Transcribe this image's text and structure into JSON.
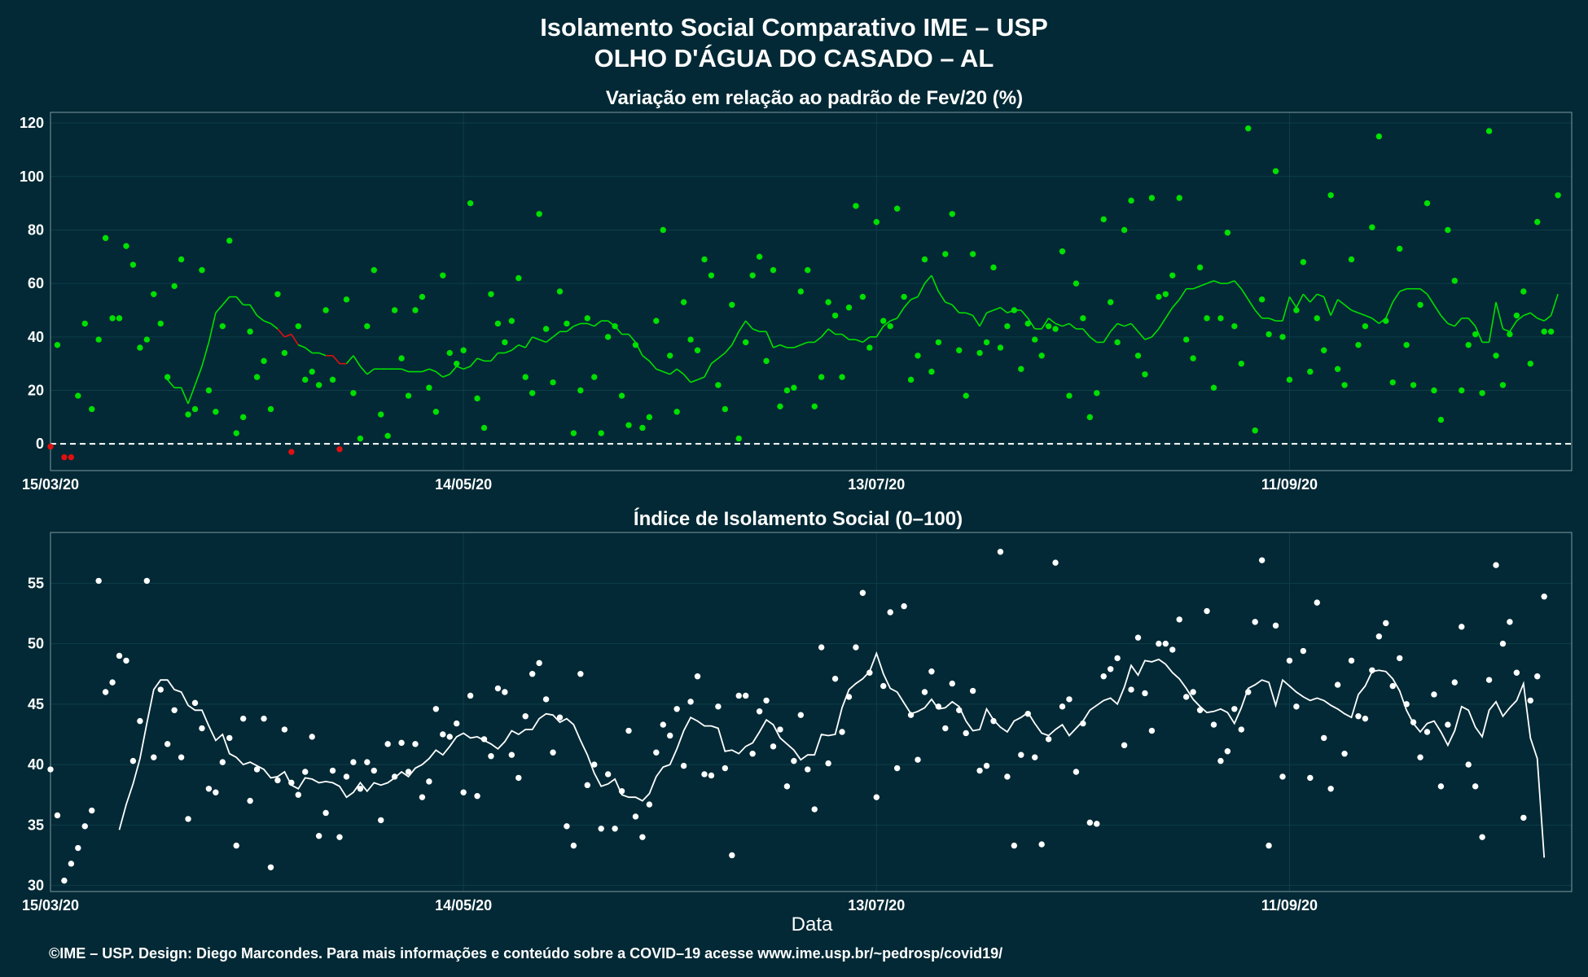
{
  "title_line1": "Isolamento Social Comparativo IME – USP",
  "title_line2": "OLHO D'ÁGUA DO CASADO – AL",
  "footer": "©IME – USP. Design: Diego Marcondes. Para mais informações e conteúdo sobre a COVID–19 acesse www.ime.usp.br/~pedrosp/covid19/",
  "xlabel": "Data",
  "colors": {
    "background": "#022935",
    "positive": "#00e000",
    "negative": "#e01010",
    "index": "#ffffff",
    "zero_line": "#ffffff",
    "grid": "#0f3d4a",
    "frame": "#7f9aa3"
  },
  "chart_data": [
    {
      "type": "scatter",
      "title": "Variação em relação ao padrão de Fev/20 (%)",
      "x_start": "15/03/20",
      "x_ticks": [
        "15/03/20",
        "14/05/20",
        "13/07/20",
        "11/09/20"
      ],
      "x_tick_days": [
        0,
        60,
        120,
        180
      ],
      "xlim_days": [
        0,
        221
      ],
      "yticks": [
        0,
        20,
        40,
        60,
        80,
        100,
        120
      ],
      "ylim": [
        -10,
        124
      ],
      "zero_line": true,
      "series": [
        {
          "kind": "daily-points",
          "values": [
            -1,
            37,
            -5,
            -5,
            18,
            45,
            13,
            39,
            77,
            47,
            47,
            74,
            67,
            36,
            39,
            56,
            45,
            25,
            59,
            69,
            11,
            13,
            65,
            20,
            12,
            44,
            76,
            4,
            10,
            42,
            25,
            31,
            13,
            56,
            34,
            -3,
            44,
            24,
            27,
            22,
            50,
            24,
            -2,
            54,
            19,
            2,
            44,
            65,
            11,
            3,
            50,
            32,
            18,
            50,
            55,
            21,
            12,
            63,
            34,
            30,
            35,
            90,
            17,
            6,
            56,
            45,
            38,
            46,
            62,
            25,
            19,
            86,
            43,
            23,
            57,
            45,
            4,
            20,
            47,
            25,
            4,
            40,
            44,
            18,
            7,
            37,
            6,
            10,
            46,
            80,
            33,
            12,
            53,
            39,
            35,
            69,
            63,
            22,
            13,
            52,
            2,
            38,
            63,
            70,
            31,
            65,
            14,
            20,
            21,
            57,
            65,
            14,
            25,
            53,
            48,
            25,
            51,
            89,
            55,
            36,
            83,
            46,
            44,
            88,
            55,
            24,
            33,
            69,
            27,
            38,
            71,
            86,
            35,
            18,
            71,
            34,
            38,
            66,
            36,
            44,
            50,
            28,
            45,
            39,
            33,
            44,
            43,
            72,
            18,
            60,
            47,
            10,
            19,
            84,
            53,
            38,
            80,
            91,
            33,
            26,
            92,
            55,
            56,
            63,
            92,
            39,
            32,
            66,
            47,
            21,
            47,
            79,
            44,
            30,
            118,
            5,
            54,
            41,
            102,
            40,
            24,
            50,
            68,
            27,
            47,
            35,
            93,
            28,
            22,
            69,
            37,
            44,
            81,
            115,
            46,
            23,
            73,
            37,
            22,
            52,
            90,
            20,
            9,
            80,
            61,
            20,
            37,
            41,
            19,
            117,
            33,
            22,
            41,
            48,
            57,
            30,
            83,
            42,
            42,
            93
          ]
        },
        {
          "kind": "moving-average",
          "values": [
            24,
            21,
            21,
            15,
            22,
            29,
            38,
            49,
            52,
            55,
            55,
            52,
            52,
            48,
            46,
            45,
            43,
            40,
            41,
            37,
            36,
            34,
            34,
            33,
            33,
            30,
            30,
            33,
            29,
            26,
            28,
            28,
            28,
            28,
            28,
            27,
            27,
            27,
            28,
            27,
            25,
            26,
            29,
            28,
            29,
            32,
            31,
            31,
            34,
            34,
            35,
            37,
            36,
            40,
            39,
            38,
            40,
            42,
            42,
            44,
            45,
            45,
            44,
            46,
            46,
            44,
            41,
            41,
            38,
            33,
            31,
            28,
            27,
            26,
            28,
            26,
            23,
            24,
            25,
            30,
            32,
            34,
            37,
            42,
            46,
            43,
            42,
            42,
            36,
            37,
            36,
            36,
            37,
            38,
            38,
            40,
            43,
            41,
            41,
            39,
            39,
            38,
            40,
            40,
            44,
            46,
            47,
            51,
            54,
            55,
            60,
            63,
            57,
            53,
            52,
            49,
            49,
            48,
            44,
            49,
            50,
            51,
            49,
            50,
            50,
            47,
            43,
            43,
            47,
            45,
            44,
            45,
            43,
            43,
            40,
            38,
            38,
            42,
            45,
            44,
            45,
            42,
            39,
            40,
            43,
            47,
            51,
            54,
            58,
            58,
            59,
            60,
            61,
            60,
            60,
            61,
            58,
            54,
            50,
            47,
            47,
            46,
            46,
            55,
            51,
            56,
            53,
            56,
            55,
            48,
            54,
            52,
            50,
            49,
            48,
            47,
            45,
            47,
            53,
            57,
            58,
            58,
            58,
            56,
            52,
            48,
            45,
            44,
            47,
            47,
            44,
            38,
            38,
            53,
            43,
            42,
            46,
            48,
            49,
            47,
            46,
            48,
            56
          ]
        }
      ]
    },
    {
      "type": "scatter",
      "title": "Índice de Isolamento Social (0–100)",
      "x_start": "15/03/20",
      "x_ticks": [
        "15/03/20",
        "14/05/20",
        "13/07/20",
        "11/09/20"
      ],
      "x_tick_days": [
        0,
        60,
        120,
        180
      ],
      "xlim_days": [
        0,
        221
      ],
      "yticks": [
        30,
        35,
        40,
        45,
        50,
        55
      ],
      "ylim": [
        29.5,
        59.2
      ],
      "xlabel": "Data",
      "series": [
        {
          "kind": "daily-points",
          "values": [
            39.6,
            35.8,
            30.4,
            31.8,
            33.1,
            34.9,
            36.2,
            55.2,
            46.0,
            46.8,
            49.0,
            48.6,
            40.3,
            43.6,
            55.2,
            40.6,
            46.2,
            41.7,
            44.5,
            40.6,
            35.5,
            45.1,
            43.0,
            38.0,
            37.7,
            40.2,
            42.2,
            33.3,
            43.8,
            37.0,
            39.6,
            43.8,
            31.5,
            38.7,
            42.9,
            38.5,
            37.5,
            39.4,
            42.3,
            34.1,
            36.0,
            39.5,
            34.0,
            39.0,
            40.2,
            38.0,
            40.2,
            39.5,
            35.4,
            41.7,
            39.0,
            41.8,
            39.4,
            41.7,
            37.3,
            38.6,
            44.6,
            42.5,
            42.3,
            43.4,
            37.7,
            45.7,
            37.4,
            42.1,
            40.7,
            46.3,
            46.0,
            40.8,
            38.9,
            44.0,
            47.5,
            48.4,
            45.4,
            41.0,
            43.9,
            34.9,
            33.3,
            47.5,
            38.3,
            40.0,
            34.7,
            39.2,
            34.7,
            37.8,
            42.8,
            35.7,
            34.0,
            36.7,
            41.0,
            43.3,
            42.4,
            44.6,
            39.9,
            45.2,
            47.3,
            39.2,
            39.1,
            44.8,
            39.7,
            32.5,
            45.7,
            45.7,
            40.9,
            44.4,
            45.3,
            41.5,
            42.9,
            38.2,
            40.3,
            44.1,
            39.6,
            36.3,
            49.7,
            40.1,
            47.1,
            42.7,
            45.6,
            49.7,
            54.2,
            47.6,
            37.3,
            46.5,
            52.6,
            39.7,
            53.1,
            44.1,
            40.4,
            46.0,
            47.7,
            44.8,
            43.0,
            46.7,
            44.5,
            42.6,
            46.1,
            39.5,
            39.9,
            43.6,
            57.6,
            39.0,
            33.3,
            40.8,
            44.2,
            40.6,
            33.4,
            42.1,
            56.7,
            44.8,
            45.4,
            39.4,
            43.4,
            35.2,
            35.1,
            47.3,
            47.9,
            48.8,
            41.6,
            46.2,
            50.5,
            45.9,
            42.8,
            50.0,
            50.0,
            49.5,
            52.0,
            45.6,
            46.0,
            44.5,
            52.7,
            43.3,
            40.3,
            41.1,
            44.6,
            42.9,
            46.0,
            51.8,
            56.9,
            33.3,
            51.5,
            39.0,
            48.6,
            44.8,
            49.4,
            38.9,
            53.4,
            42.2,
            38.0,
            46.6,
            40.9,
            48.6,
            44.0,
            43.8,
            47.8,
            50.6,
            51.7,
            46.5,
            48.8,
            45.0,
            43.5,
            40.6,
            42.7,
            45.8,
            38.2,
            43.3,
            46.8,
            51.4,
            40.0,
            38.2,
            34.0,
            47.0,
            56.5,
            50.0,
            51.8,
            47.6,
            35.6,
            45.3,
            47.3,
            53.9
          ]
        },
        {
          "kind": "moving-average",
          "values": [
            34.6,
            36.7,
            38.4,
            40.5,
            43.4,
            46.2,
            47.0,
            47.0,
            46.2,
            46.0,
            44.9,
            44.5,
            44.5,
            43.2,
            42.0,
            42.5,
            40.9,
            40.6,
            40.0,
            40.2,
            39.9,
            39.6,
            38.9,
            39.0,
            39.4,
            38.3,
            38.0,
            38.9,
            38.8,
            38.5,
            38.6,
            38.5,
            38.2,
            37.3,
            37.7,
            38.5,
            37.8,
            38.5,
            38.3,
            38.5,
            38.9,
            39.4,
            39.0,
            39.7,
            40.0,
            40.5,
            41.2,
            40.8,
            41.5,
            42.3,
            42.6,
            42.2,
            42.3,
            42.0,
            41.7,
            41.3,
            41.9,
            42.8,
            42.5,
            42.9,
            42.9,
            43.8,
            44.2,
            44.1,
            43.5,
            43.8,
            43.3,
            42.0,
            40.8,
            39.3,
            38.2,
            38.4,
            38.8,
            37.5,
            37.3,
            37.3,
            37.0,
            37.6,
            39.0,
            39.8,
            40.0,
            41.3,
            42.8,
            43.9,
            43.6,
            43.2,
            43.2,
            43.0,
            41.1,
            41.2,
            40.9,
            41.5,
            41.8,
            42.7,
            43.7,
            43.3,
            42.2,
            41.7,
            41.2,
            40.4,
            40.8,
            40.8,
            42.5,
            42.4,
            42.5,
            44.7,
            46.2,
            46.7,
            47.1,
            47.7,
            49.2,
            47.5,
            46.3,
            46.0,
            45.1,
            44.2,
            44.4,
            44.7,
            45.4,
            44.6,
            44.7,
            45.2,
            44.8,
            43.6,
            42.8,
            42.9,
            44.6,
            43.7,
            43.1,
            42.7,
            43.6,
            43.9,
            44.3,
            43.4,
            42.6,
            42.4,
            42.9,
            43.3,
            42.4,
            43.0,
            43.6,
            44.5,
            44.9,
            45.3,
            45.5,
            45.0,
            46.4,
            48.2,
            47.4,
            48.6,
            48.5,
            48.7,
            48.3,
            47.6,
            47.1,
            46.3,
            45.4,
            44.8,
            44.3,
            44.4,
            44.6,
            44.3,
            43.4,
            44.7,
            46.3,
            46.6,
            47.0,
            46.8,
            44.9,
            47.0,
            46.5,
            46.0,
            45.6,
            45.3,
            45.5,
            45.3,
            44.9,
            44.6,
            44.2,
            43.9,
            45.8,
            46.5,
            47.7,
            47.8,
            47.7,
            47.1,
            46.1,
            44.5,
            43.4,
            42.7,
            43.4,
            43.6,
            42.7,
            41.6,
            42.8,
            44.8,
            44.5,
            43.1,
            42.3,
            44.5,
            45.2,
            44.0,
            44.7,
            45.3,
            46.7,
            42.2,
            40.5,
            32.3
          ]
        }
      ]
    }
  ]
}
